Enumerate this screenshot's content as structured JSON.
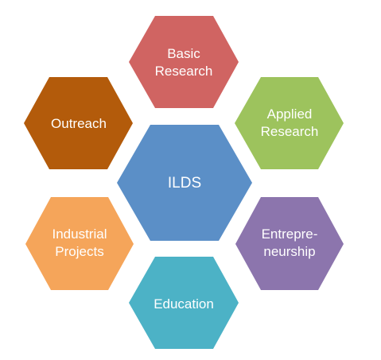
{
  "hexagons": [
    {
      "id": "center",
      "lines": [
        "ILDS"
      ],
      "color": "#5b8fc7"
    },
    {
      "id": "basic-research",
      "lines": [
        "Basic",
        "Research"
      ],
      "color": "#d06462"
    },
    {
      "id": "applied-research",
      "lines": [
        "Applied",
        "Research"
      ],
      "color": "#9dc35d"
    },
    {
      "id": "entrepreneurship",
      "lines": [
        "Entrepre-",
        "neurship"
      ],
      "color": "#8c75ad"
    },
    {
      "id": "education",
      "lines": [
        "Education"
      ],
      "color": "#4cb2c6"
    },
    {
      "id": "industrial-projects",
      "lines": [
        "Industrial",
        "Projects"
      ],
      "color": "#f5a55a"
    },
    {
      "id": "outreach",
      "lines": [
        "Outreach"
      ],
      "color": "#b35b0b"
    }
  ]
}
